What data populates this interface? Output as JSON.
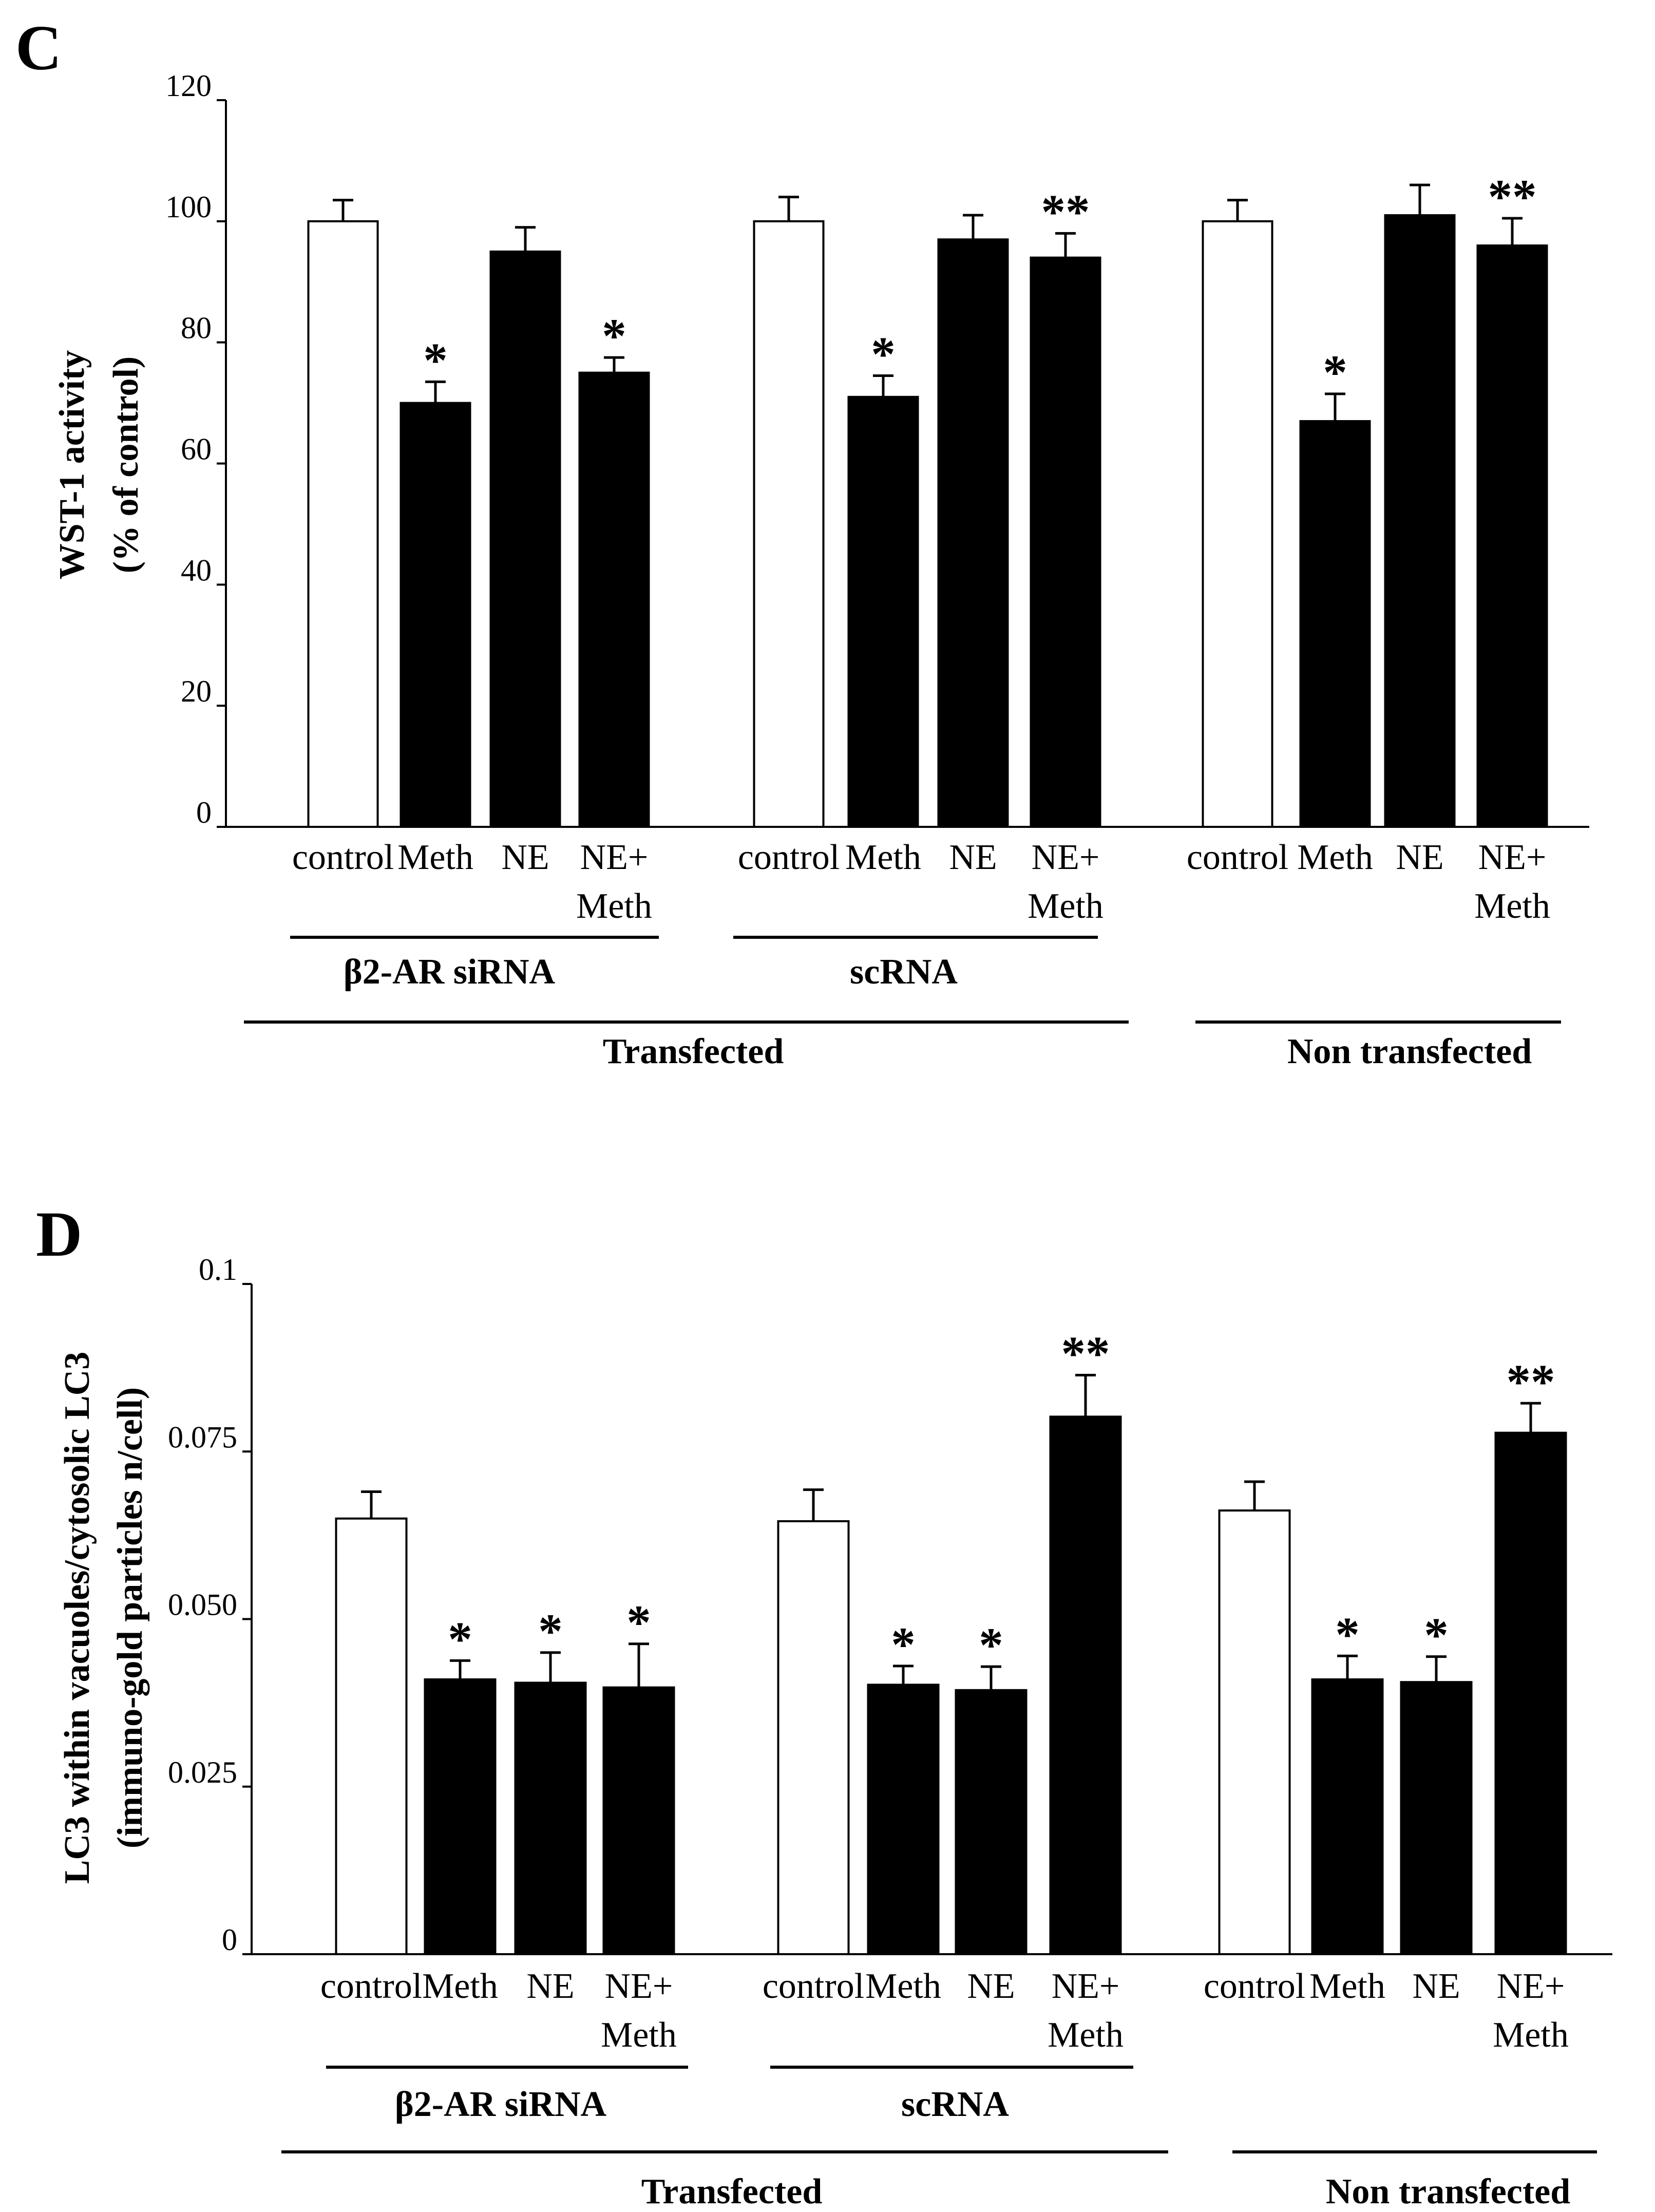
{
  "chart_data": [
    {
      "panel_label": "C",
      "type": "bar",
      "ylabel_line1": "WST-1 activity",
      "ylabel_line2": "(% of control)",
      "ylim": [
        0,
        120
      ],
      "yticks": [
        "0",
        "20",
        "40",
        "60",
        "80",
        "100",
        "120"
      ],
      "ytick_values": [
        0,
        20,
        40,
        60,
        80,
        100,
        120
      ],
      "bars": [
        {
          "label": "control",
          "value": 100,
          "err": 3.5,
          "fill": "white",
          "stars": "",
          "group": 0
        },
        {
          "label": "Meth",
          "value": 70,
          "err": 3.5,
          "fill": "black",
          "stars": "*",
          "group": 0
        },
        {
          "label": "NE",
          "value": 95,
          "err": 4,
          "fill": "black",
          "stars": "",
          "group": 0
        },
        {
          "label": "NE+ Meth",
          "value": 75,
          "err": 2.5,
          "fill": "black",
          "stars": "*",
          "group": 0
        },
        {
          "label": "control",
          "value": 100,
          "err": 4,
          "fill": "white",
          "stars": "",
          "group": 1
        },
        {
          "label": "Meth",
          "value": 71,
          "err": 3.5,
          "fill": "black",
          "stars": "*",
          "group": 1
        },
        {
          "label": "NE",
          "value": 97,
          "err": 4,
          "fill": "black",
          "stars": "",
          "group": 1
        },
        {
          "label": "NE+ Meth",
          "value": 94,
          "err": 4,
          "fill": "black",
          "stars": "**",
          "group": 1
        },
        {
          "label": "control",
          "value": 100,
          "err": 3.5,
          "fill": "white",
          "stars": "",
          "group": 2
        },
        {
          "label": "Meth",
          "value": 67,
          "err": 4.5,
          "fill": "black",
          "stars": "*",
          "group": 2
        },
        {
          "label": "NE",
          "value": 101,
          "err": 5,
          "fill": "black",
          "stars": "",
          "group": 2
        },
        {
          "label": "NE+ Meth",
          "value": 96,
          "err": 4.5,
          "fill": "black",
          "stars": "**",
          "group": 2
        }
      ],
      "group_labels": [
        "β2-AR siRNA",
        "scRNA"
      ],
      "super_labels": [
        "Transfected",
        "Non transfected"
      ]
    },
    {
      "panel_label": "D",
      "type": "bar",
      "ylabel_line1": "LC3 within vacuoles/cytosolic LC3",
      "ylabel_line2": "(immuno-gold particles n/cell)",
      "ylim": [
        0,
        0.1
      ],
      "yticks": [
        "0",
        "0.025",
        "0.050",
        "0.075",
        "0.1"
      ],
      "ytick_values": [
        0,
        0.025,
        0.05,
        0.075,
        0.1
      ],
      "bars": [
        {
          "label": "control",
          "value": 0.065,
          "err": 0.004,
          "fill": "white",
          "stars": "",
          "group": 0
        },
        {
          "label": "Meth",
          "value": 0.041,
          "err": 0.0028,
          "fill": "black",
          "stars": "*",
          "group": 0
        },
        {
          "label": "NE",
          "value": 0.0405,
          "err": 0.0045,
          "fill": "black",
          "stars": "*",
          "group": 0
        },
        {
          "label": "NE+ Meth",
          "value": 0.0398,
          "err": 0.0065,
          "fill": "black",
          "stars": "*",
          "group": 0
        },
        {
          "label": "control",
          "value": 0.0646,
          "err": 0.0047,
          "fill": "white",
          "stars": "",
          "group": 1
        },
        {
          "label": "Meth",
          "value": 0.0402,
          "err": 0.0028,
          "fill": "black",
          "stars": "*",
          "group": 1
        },
        {
          "label": "NE",
          "value": 0.0394,
          "err": 0.0035,
          "fill": "black",
          "stars": "*",
          "group": 1
        },
        {
          "label": "NE+ Meth",
          "value": 0.0802,
          "err": 0.0062,
          "fill": "black",
          "stars": "**",
          "group": 1
        },
        {
          "label": "control",
          "value": 0.0662,
          "err": 0.0043,
          "fill": "white",
          "stars": "",
          "group": 2
        },
        {
          "label": "Meth",
          "value": 0.041,
          "err": 0.0035,
          "fill": "black",
          "stars": "*",
          "group": 2
        },
        {
          "label": "NE",
          "value": 0.0406,
          "err": 0.0038,
          "fill": "black",
          "stars": "*",
          "group": 2
        },
        {
          "label": "NE+ Meth",
          "value": 0.0778,
          "err": 0.0044,
          "fill": "black",
          "stars": "**",
          "group": 2
        }
      ],
      "group_labels": [
        "β2-AR siRNA",
        "scRNA"
      ],
      "super_labels": [
        "Transfected",
        "Non transfected"
      ]
    }
  ]
}
